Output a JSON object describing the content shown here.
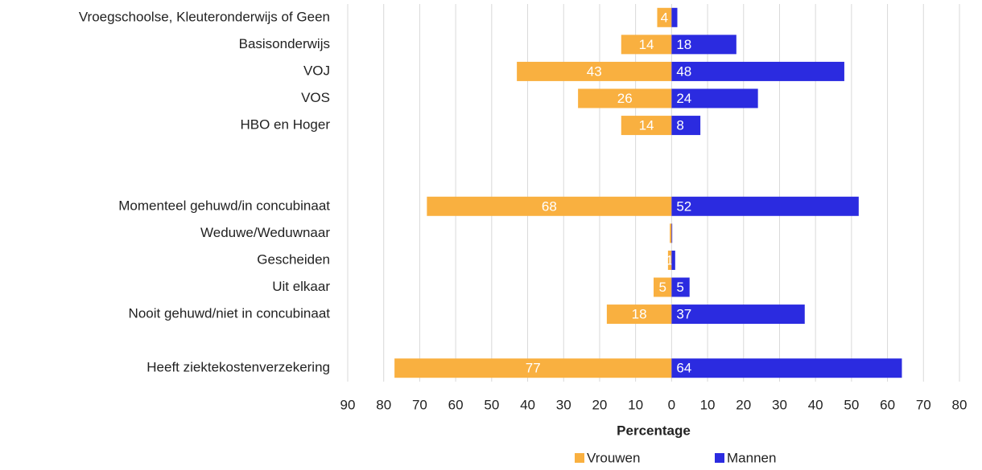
{
  "chart_data": {
    "type": "butterfly",
    "categories": [
      "Vroegschoolse, Kleuteronderwijs of Geen",
      "Basisonderwijs",
      "VOJ",
      "VOS",
      "HBO en Hoger",
      null,
      null,
      "Momenteel gehuwd/in concubinaat",
      "Weduwe/Weduwnaar",
      "Gescheiden",
      "Uit elkaar",
      "Nooit gehuwd/niet in concubinaat",
      null,
      "Heeft ziektekostenverzekering"
    ],
    "series": [
      {
        "name": "Vrouwen",
        "color": "#f9b040",
        "values": [
          -4,
          -14,
          -43,
          -26,
          -14,
          null,
          null,
          -68,
          -0.5,
          -1,
          -5,
          -18,
          null,
          -77
        ],
        "value_labels": [
          "4",
          "14",
          "43",
          "26",
          "14",
          null,
          null,
          "68",
          null,
          "1",
          "5",
          "18",
          null,
          "77"
        ]
      },
      {
        "name": "Mannen",
        "color": "#2b2be0",
        "values": [
          1.6,
          18,
          48,
          24,
          8,
          null,
          null,
          52,
          0,
          1,
          5,
          37,
          null,
          64
        ],
        "value_labels": [
          null,
          "18",
          "48",
          "24",
          "8",
          null,
          null,
          "52",
          null,
          "1",
          "5",
          "37",
          null,
          "64"
        ]
      }
    ],
    "xlabel": "Percentage",
    "xlim": [
      -90,
      80
    ],
    "xticks": [
      {
        "value": -90,
        "label": "90"
      },
      {
        "value": -80,
        "label": "80"
      },
      {
        "value": -70,
        "label": "70"
      },
      {
        "value": -60,
        "label": "60"
      },
      {
        "value": -50,
        "label": "50"
      },
      {
        "value": -40,
        "label": "40"
      },
      {
        "value": -30,
        "label": "30"
      },
      {
        "value": -20,
        "label": "20"
      },
      {
        "value": -10,
        "label": "10"
      },
      0,
      10,
      20,
      30,
      40,
      50,
      60,
      70,
      80
    ],
    "grid": true,
    "legend": "bottom"
  }
}
